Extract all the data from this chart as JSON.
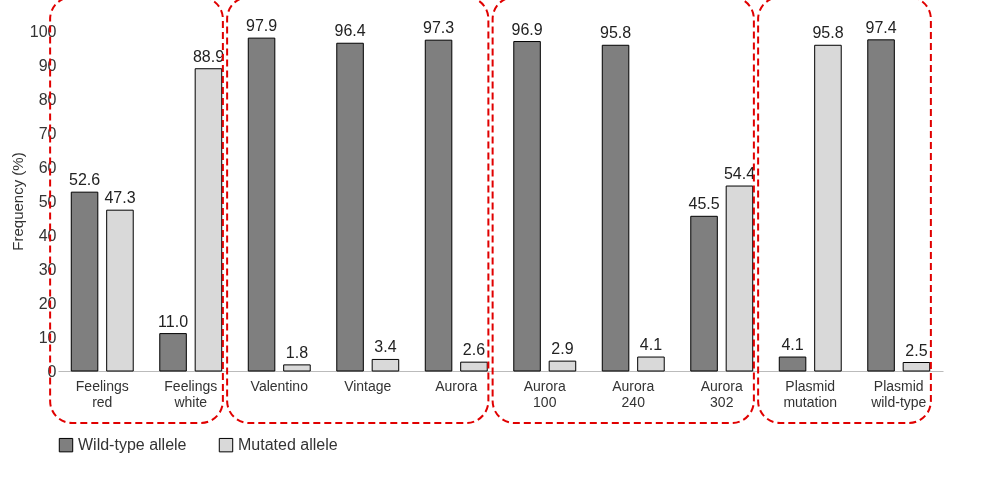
{
  "chart_data": {
    "type": "bar",
    "ylabel": "Frequency (%)",
    "categories": [
      "Feelings red",
      "Feelings white",
      "Valentino",
      "Vintage",
      "Aurora",
      "Aurora 100",
      "Aurora 240",
      "Aurora 302",
      "Plasmid mutation",
      "Plasmid wild-type"
    ],
    "series": [
      {
        "name": "Wild-type allele",
        "color": "#7f7f7f",
        "values": [
          52.6,
          11.0,
          97.9,
          96.4,
          97.3,
          96.9,
          95.8,
          45.5,
          4.1,
          97.4
        ],
        "value_labels": [
          "52.6",
          "11.0",
          "97.9",
          "96.4",
          "97.3",
          "96.9",
          "95.8",
          "45.5",
          "4.1",
          "97.4"
        ]
      },
      {
        "name": "Mutated allele",
        "color": "#d9d9d9",
        "values": [
          47.3,
          88.9,
          1.8,
          3.4,
          2.6,
          2.9,
          4.1,
          54.4,
          95.8,
          2.5
        ],
        "value_labels": [
          "47.3",
          "88.9",
          "1.8",
          "3.4",
          "2.6",
          "2.9",
          "4.1",
          "54.4",
          "95.8",
          "2.5"
        ]
      }
    ],
    "ylim": [
      0,
      100
    ],
    "yticks": [
      0,
      10,
      20,
      30,
      40,
      50,
      60,
      70,
      80,
      90,
      100
    ],
    "legend": "bottom",
    "grid": false
  }
}
